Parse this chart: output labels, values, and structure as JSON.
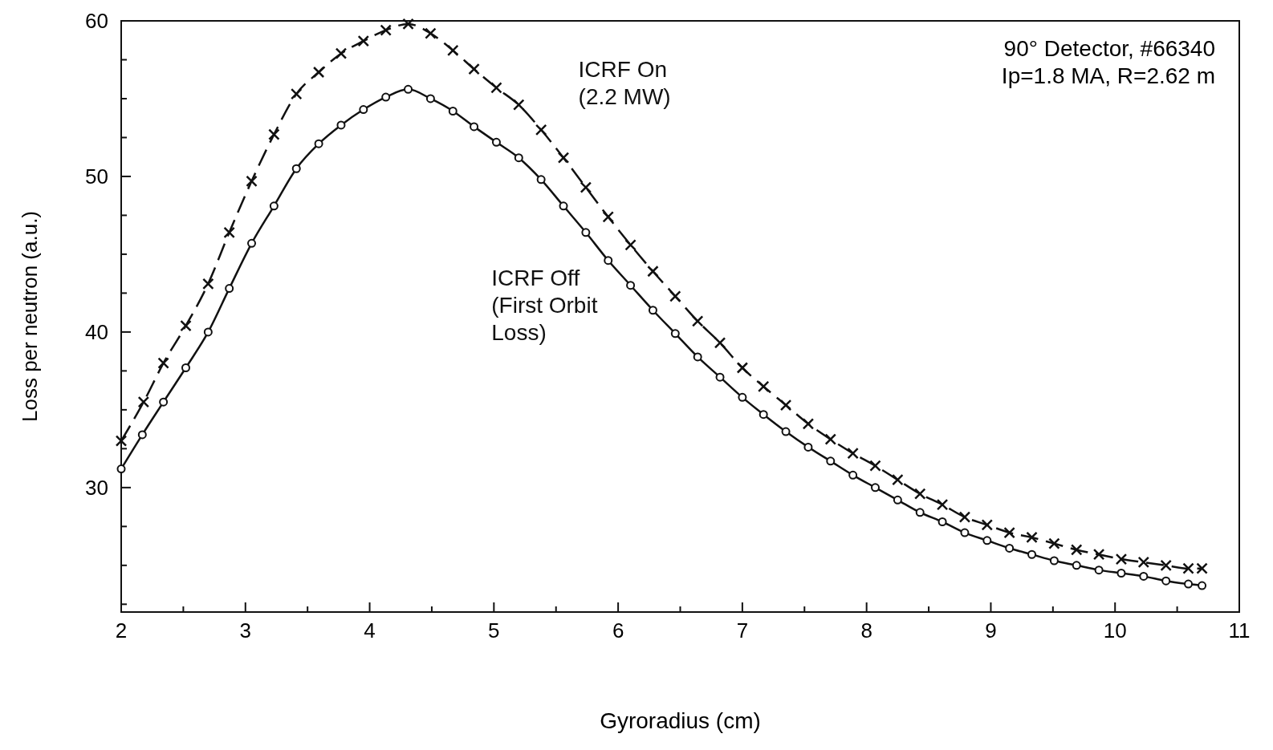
{
  "chart_data": {
    "type": "line",
    "xlabel": "Gyroradius (cm)",
    "ylabel": "Loss per neutron (a.u.)",
    "xlim": [
      2,
      11
    ],
    "ylim": [
      22,
      60
    ],
    "xticks": [
      2,
      {
        "value": 2.5,
        "label": null
      },
      3,
      {
        "value": 3.5,
        "label": null
      },
      4,
      {
        "value": 4.5,
        "label": null
      },
      5,
      {
        "value": 5.5,
        "label": null
      },
      6,
      {
        "value": 6.5,
        "label": null
      },
      7,
      {
        "value": 7.5,
        "label": null
      },
      8,
      {
        "value": 8.5,
        "label": null
      },
      9,
      {
        "value": 9.5,
        "label": null
      },
      10,
      {
        "value": 10.5,
        "label": null
      },
      11
    ],
    "yticks": [
      {
        "value": 22.5,
        "label": null
      },
      {
        "value": 25,
        "label": null
      },
      {
        "value": 27.5,
        "label": null
      },
      30,
      {
        "value": 32.5,
        "label": null
      },
      {
        "value": 35,
        "label": null
      },
      {
        "value": 37.5,
        "label": null
      },
      40,
      {
        "value": 42.5,
        "label": null
      },
      {
        "value": 45,
        "label": null
      },
      {
        "value": 47.5,
        "label": null
      },
      50,
      {
        "value": 52.5,
        "label": null
      },
      {
        "value": 55,
        "label": null
      },
      {
        "value": 57.5,
        "label": null
      },
      60
    ],
    "grid": false,
    "series": [
      {
        "name": "ICRF On\n(2.2 MW)",
        "color": "#111111",
        "marker": "cross",
        "line_style": "dashed",
        "x": [
          2.0,
          2.18,
          2.34,
          2.52,
          2.7,
          2.87,
          3.05,
          3.23,
          3.41,
          3.59,
          3.77,
          3.95,
          4.13,
          4.31,
          4.49,
          4.67,
          4.84,
          5.02,
          5.2,
          5.38,
          5.56,
          5.74,
          5.92,
          6.1,
          6.28,
          6.46,
          6.64,
          6.82,
          7.0,
          7.17,
          7.35,
          7.53,
          7.71,
          7.89,
          8.07,
          8.25,
          8.43,
          8.61,
          8.79,
          8.97,
          9.15,
          9.33,
          9.51,
          9.69,
          9.87,
          10.05,
          10.23,
          10.41,
          10.59,
          10.7
        ],
        "values": [
          33.0,
          35.5,
          38.0,
          40.4,
          43.1,
          46.4,
          49.7,
          52.7,
          55.3,
          56.7,
          57.9,
          58.7,
          59.4,
          59.8,
          59.2,
          58.1,
          56.9,
          55.7,
          54.6,
          53.0,
          51.2,
          49.3,
          47.4,
          45.6,
          43.9,
          42.3,
          40.7,
          39.3,
          37.7,
          36.5,
          35.3,
          34.1,
          33.1,
          32.2,
          31.4,
          30.5,
          29.6,
          28.9,
          28.1,
          27.6,
          27.1,
          26.8,
          26.4,
          26.0,
          25.7,
          25.4,
          25.2,
          25.0,
          24.8,
          24.8
        ]
      },
      {
        "name": "ICRF Off\n(First Orbit\nLoss)",
        "color": "#111111",
        "marker": "circle",
        "line_style": "solid",
        "x": [
          2.0,
          2.17,
          2.34,
          2.52,
          2.7,
          2.87,
          3.05,
          3.23,
          3.41,
          3.59,
          3.77,
          3.95,
          4.13,
          4.31,
          4.49,
          4.67,
          4.84,
          5.02,
          5.2,
          5.38,
          5.56,
          5.74,
          5.92,
          6.1,
          6.28,
          6.46,
          6.64,
          6.82,
          7.0,
          7.17,
          7.35,
          7.53,
          7.71,
          7.89,
          8.07,
          8.25,
          8.43,
          8.61,
          8.79,
          8.97,
          9.15,
          9.33,
          9.51,
          9.69,
          9.87,
          10.05,
          10.23,
          10.41,
          10.59,
          10.7
        ],
        "values": [
          31.2,
          33.4,
          35.5,
          37.7,
          40.0,
          42.8,
          45.7,
          48.1,
          50.5,
          52.1,
          53.3,
          54.3,
          55.1,
          55.6,
          55.0,
          54.2,
          53.2,
          52.2,
          51.2,
          49.8,
          48.1,
          46.4,
          44.6,
          43.0,
          41.4,
          39.9,
          38.4,
          37.1,
          35.8,
          34.7,
          33.6,
          32.6,
          31.7,
          30.8,
          30.0,
          29.2,
          28.4,
          27.8,
          27.1,
          26.6,
          26.1,
          25.7,
          25.3,
          25.0,
          24.7,
          24.5,
          24.3,
          24.0,
          23.8,
          23.7
        ]
      }
    ],
    "annotations": [
      "90° Detector, #66340\nIp=1.8 MA, R=2.62 m"
    ]
  }
}
